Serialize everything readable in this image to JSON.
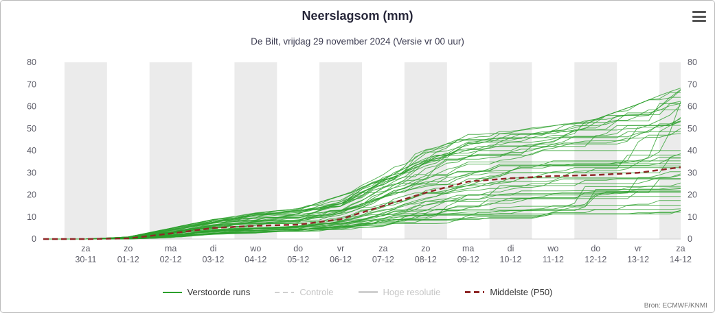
{
  "chart_data": {
    "type": "line",
    "title": "Neerslagsom (mm)",
    "subtitle": "De Bilt, vrijdag 29 november 2024 (Versie vr 00 uur)",
    "ylim": [
      0,
      80
    ],
    "ytick_step": 10,
    "categories": [
      {
        "dow": "za",
        "date": "30-11"
      },
      {
        "dow": "zo",
        "date": "01-12"
      },
      {
        "dow": "ma",
        "date": "02-12"
      },
      {
        "dow": "di",
        "date": "03-12"
      },
      {
        "dow": "wo",
        "date": "04-12"
      },
      {
        "dow": "do",
        "date": "05-12"
      },
      {
        "dow": "vr",
        "date": "06-12"
      },
      {
        "dow": "za",
        "date": "07-12"
      },
      {
        "dow": "zo",
        "date": "08-12"
      },
      {
        "dow": "ma",
        "date": "09-12"
      },
      {
        "dow": "di",
        "date": "10-12"
      },
      {
        "dow": "wo",
        "date": "11-12"
      },
      {
        "dow": "do",
        "date": "12-12"
      },
      {
        "dow": "vr",
        "date": "13-12"
      },
      {
        "dow": "za",
        "date": "14-12"
      }
    ],
    "time_days": [
      0,
      1,
      2,
      3,
      4,
      5,
      6,
      7,
      8,
      9,
      10,
      11,
      12,
      13,
      14,
      15
    ],
    "median_p50": [
      0,
      0,
      0.3,
      2.5,
      5,
      6,
      6.5,
      9,
      15,
      21,
      26,
      27.5,
      28.5,
      29,
      30,
      32.5
    ],
    "ensemble_min": [
      0,
      0,
      0,
      0.5,
      2,
      2.5,
      3,
      4,
      5,
      6,
      7,
      7,
      7.5,
      8,
      8,
      8
    ],
    "ensemble_max": [
      0,
      0,
      1,
      5,
      9,
      12,
      14,
      20,
      30,
      42,
      48,
      50,
      52,
      55,
      62,
      70
    ],
    "n_ensemble_members": 50,
    "series": [
      {
        "name": "Verstoorde runs",
        "type": "ensemble",
        "color": "#2ca02c",
        "visible": true
      },
      {
        "name": "Controle",
        "type": "line",
        "color": "#cfcfcf",
        "visible": false
      },
      {
        "name": "Hoge resolutie",
        "type": "line",
        "color": "#cfcfcf",
        "visible": false
      },
      {
        "name": "Middelste (P50)",
        "type": "dashed-line",
        "color": "#8f2727",
        "visible": true
      }
    ],
    "band_color": "#ebebeb",
    "axis_text_color": "#5f5f6a",
    "legend_position": "bottom"
  },
  "legend": {
    "items": [
      {
        "label": "Verstoorde runs",
        "enabled": true
      },
      {
        "label": "Controle",
        "enabled": false
      },
      {
        "label": "Hoge resolutie",
        "enabled": false
      },
      {
        "label": "Middelste (P50)",
        "enabled": true
      }
    ]
  },
  "footer": {
    "source": "Bron: ECMWF/KNMI"
  }
}
